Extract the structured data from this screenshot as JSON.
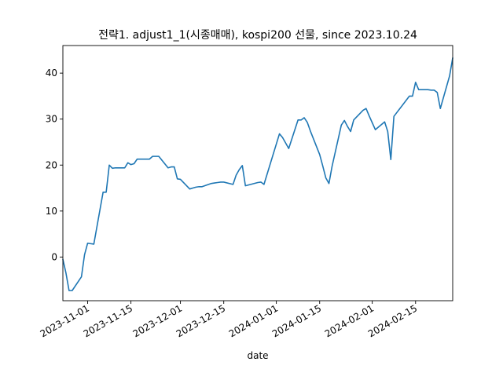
{
  "chart_data": {
    "type": "line",
    "title": "전략1. adjust1_1(시종매매), kospi200 선물, since 2023.10.24",
    "xlabel": "date",
    "ylabel": "",
    "x_type": "date",
    "xlim": [
      "2023-10-24",
      "2024-02-27"
    ],
    "ylim": [
      -9.5,
      46
    ],
    "grid": false,
    "legend": "none",
    "xticks": [
      "2023-11-01",
      "2023-11-15",
      "2023-12-01",
      "2023-12-15",
      "2024-01-01",
      "2024-01-15",
      "2024-02-01",
      "2024-02-15"
    ],
    "yticks": [
      0,
      10,
      20,
      30,
      40
    ],
    "line_color": "#1f77b4",
    "series": [
      {
        "x": [
          "2023-10-24",
          "2023-10-25",
          "2023-10-26",
          "2023-10-27",
          "2023-10-30",
          "2023-10-31",
          "2023-11-01",
          "2023-11-02",
          "2023-11-03",
          "2023-11-06",
          "2023-11-07",
          "2023-11-08",
          "2023-11-09",
          "2023-11-10",
          "2023-11-13",
          "2023-11-14",
          "2023-11-15",
          "2023-11-16",
          "2023-11-17",
          "2023-11-20",
          "2023-11-21",
          "2023-11-22",
          "2023-11-23",
          "2023-11-24",
          "2023-11-27",
          "2023-11-28",
          "2023-11-29",
          "2023-11-30",
          "2023-12-01",
          "2023-12-04",
          "2023-12-05",
          "2023-12-06",
          "2023-12-07",
          "2023-12-08",
          "2023-12-11",
          "2023-12-12",
          "2023-12-13",
          "2023-12-14",
          "2023-12-15",
          "2023-12-18",
          "2023-12-19",
          "2023-12-20",
          "2023-12-21",
          "2023-12-22",
          "2023-12-26",
          "2023-12-27",
          "2023-12-28",
          "2024-01-02",
          "2024-01-03",
          "2024-01-04",
          "2024-01-05",
          "2024-01-08",
          "2024-01-09",
          "2024-01-10",
          "2024-01-11",
          "2024-01-12",
          "2024-01-15",
          "2024-01-16",
          "2024-01-17",
          "2024-01-18",
          "2024-01-19",
          "2024-01-22",
          "2024-01-23",
          "2024-01-24",
          "2024-01-25",
          "2024-01-26",
          "2024-01-29",
          "2024-01-30",
          "2024-01-31",
          "2024-02-01",
          "2024-02-02",
          "2024-02-05",
          "2024-02-06",
          "2024-02-07",
          "2024-02-08",
          "2024-02-13",
          "2024-02-14",
          "2024-02-15",
          "2024-02-16",
          "2024-02-19",
          "2024-02-20",
          "2024-02-21",
          "2024-02-22",
          "2024-02-23",
          "2024-02-26",
          "2024-02-27"
        ],
        "y": [
          -0.5,
          -3.5,
          -7.3,
          -7.3,
          -4.3,
          0.5,
          3.0,
          2.9,
          2.8,
          14.1,
          14.1,
          20.0,
          19.3,
          19.4,
          19.4,
          20.5,
          20.1,
          20.3,
          21.3,
          21.3,
          21.3,
          21.9,
          21.9,
          21.9,
          19.4,
          19.6,
          19.6,
          17.0,
          16.9,
          14.8,
          15.0,
          15.2,
          15.3,
          15.3,
          16.0,
          16.1,
          16.2,
          16.3,
          16.3,
          15.8,
          17.8,
          19.0,
          19.9,
          15.5,
          16.2,
          16.3,
          15.8,
          26.8,
          26.0,
          24.8,
          23.6,
          29.8,
          29.8,
          30.3,
          29.3,
          27.4,
          22.3,
          19.8,
          17.2,
          16.0,
          19.7,
          28.7,
          29.7,
          28.4,
          27.3,
          29.8,
          31.9,
          32.3,
          30.7,
          29.2,
          27.7,
          29.4,
          27.3,
          21.2,
          30.6,
          35.0,
          35.0,
          38.0,
          36.4,
          36.4,
          36.3,
          36.3,
          35.8,
          32.3,
          39.4,
          43.3
        ]
      }
    ]
  }
}
